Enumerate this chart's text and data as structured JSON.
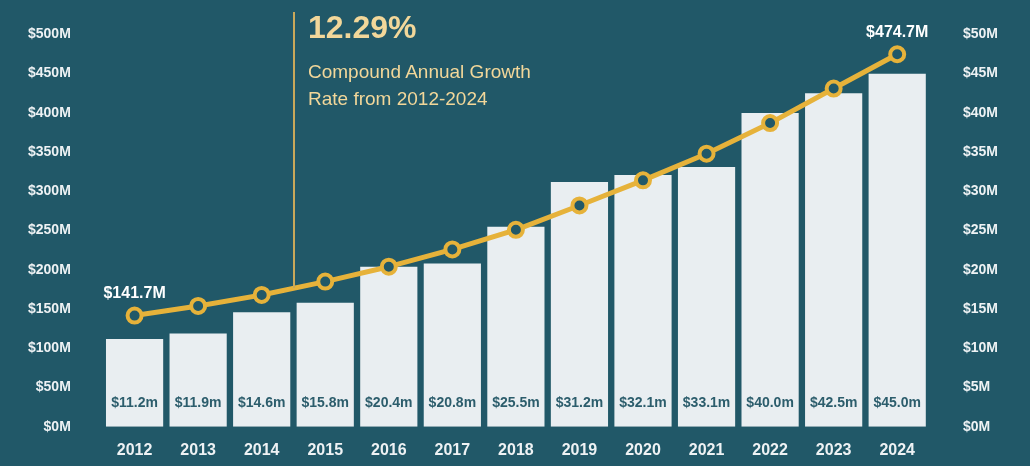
{
  "chart_data": {
    "type": "bar",
    "categories": [
      "2012",
      "2013",
      "2014",
      "2015",
      "2016",
      "2017",
      "2018",
      "2019",
      "2020",
      "2021",
      "2022",
      "2023",
      "2024"
    ],
    "series": [
      {
        "axis": "y2",
        "color": "#e9eef1",
        "values": [
          11.2,
          11.9,
          14.6,
          15.8,
          20.4,
          20.8,
          25.5,
          31.2,
          32.1,
          33.1,
          40.0,
          42.5,
          45.0
        ],
        "value_labels": [
          "$11.2m",
          "$11.9m",
          "$14.6m",
          "$15.8m",
          "$20.4m",
          "$20.8m",
          "$25.5m",
          "$31.2m",
          "$32.1m",
          "$33.1m",
          "$40.0m",
          "$42.5m",
          "$45.0m"
        ]
      },
      {
        "type": "line",
        "axis": "y",
        "color": "#e6b23a",
        "marker": "circle",
        "values": [
          141.7,
          154,
          168,
          185,
          204,
          226,
          251,
          282,
          314,
          348,
          387,
          431,
          474.7
        ],
        "value_labels": [
          "$141.7M",
          null,
          null,
          null,
          null,
          null,
          null,
          null,
          null,
          null,
          null,
          null,
          "$474.7M"
        ]
      }
    ],
    "ylim": [
      0,
      500
    ],
    "yticks": [
      {
        "value": 0,
        "label": "$0M"
      },
      {
        "value": 50,
        "label": "$50M"
      },
      {
        "value": 100,
        "label": "$100M"
      },
      {
        "value": 150,
        "label": "$150M"
      },
      {
        "value": 200,
        "label": "$200M"
      },
      {
        "value": 250,
        "label": "$250M"
      },
      {
        "value": 300,
        "label": "$300M"
      },
      {
        "value": 350,
        "label": "$350M"
      },
      {
        "value": 400,
        "label": "$400M"
      },
      {
        "value": 450,
        "label": "$450M"
      },
      {
        "value": 500,
        "label": "$500M"
      }
    ],
    "y2lim": [
      0,
      50
    ],
    "y2ticks": [
      {
        "value": 0,
        "label": "$0M"
      },
      {
        "value": 5,
        "label": "$5M"
      },
      {
        "value": 10,
        "label": "$10M"
      },
      {
        "value": 15,
        "label": "$15M"
      },
      {
        "value": 20,
        "label": "$20M"
      },
      {
        "value": 25,
        "label": "$25M"
      },
      {
        "value": 30,
        "label": "$30M"
      },
      {
        "value": 35,
        "label": "$35M"
      },
      {
        "value": 40,
        "label": "$40M"
      },
      {
        "value": 45,
        "label": "$45M"
      },
      {
        "value": 50,
        "label": "$50M"
      }
    ],
    "grid": false,
    "legend": false,
    "annotations": [
      "12.29%",
      "Compound Annual Growth Rate from 2012-2024"
    ]
  }
}
